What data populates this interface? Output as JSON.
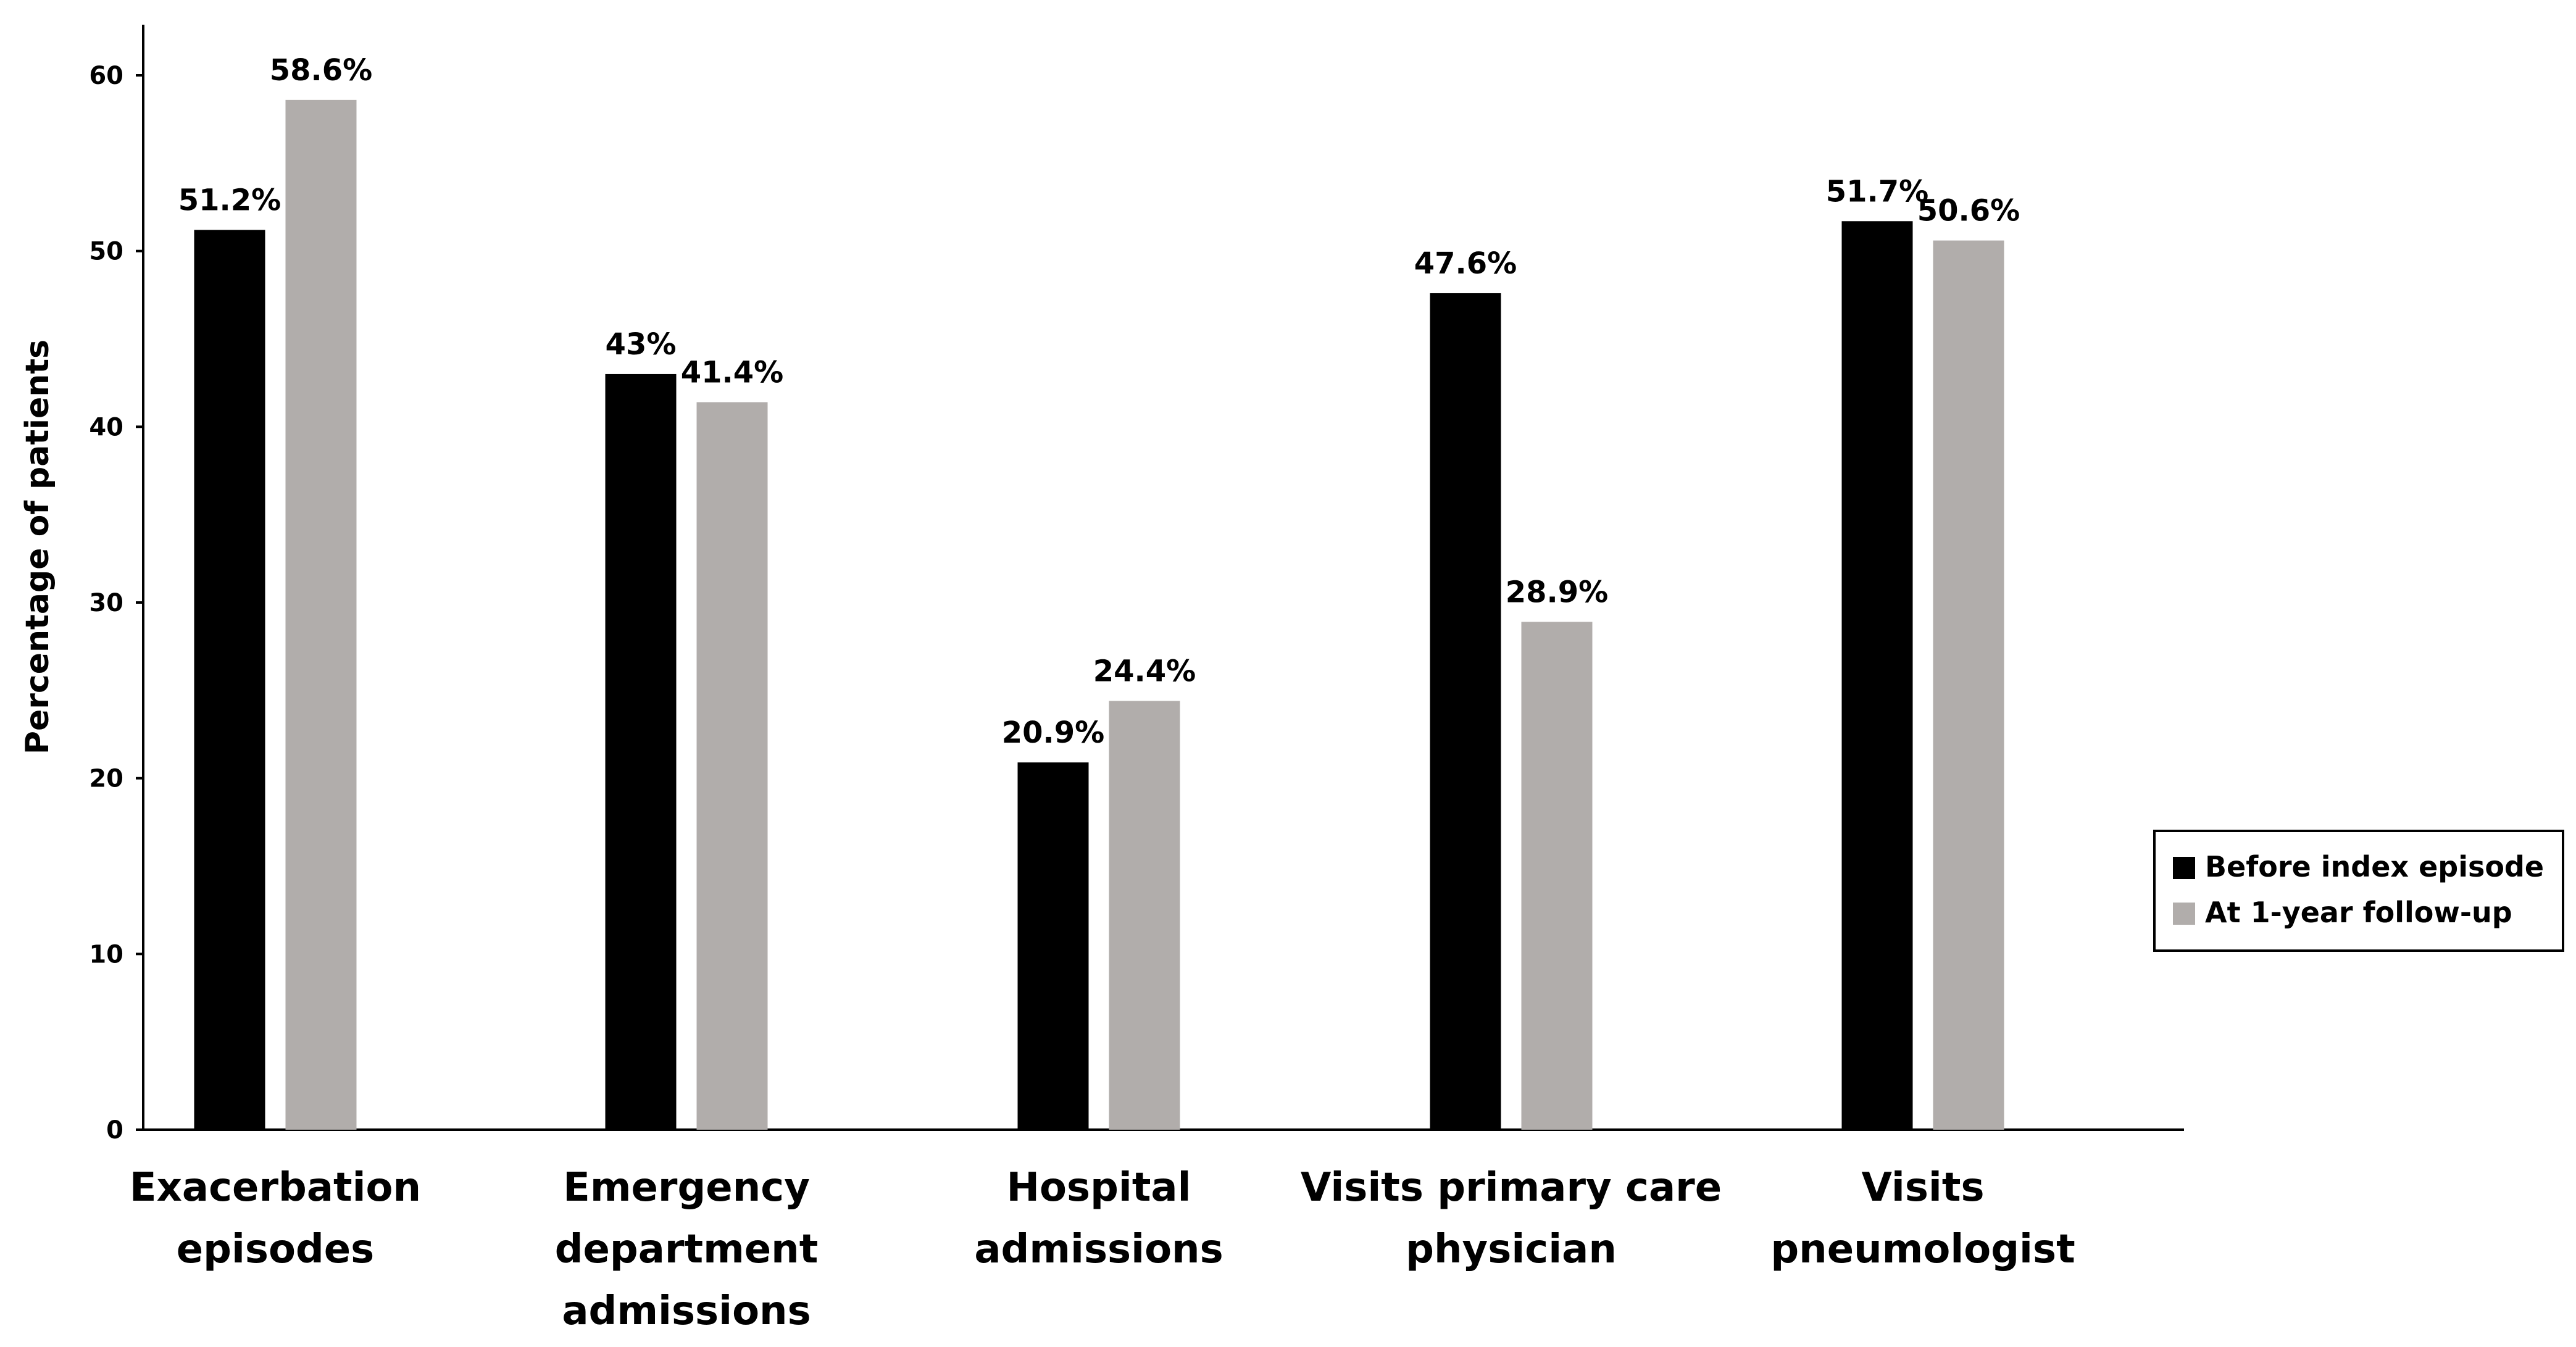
{
  "chart_data": {
    "type": "bar",
    "title": "",
    "xlabel": "",
    "ylabel": "Percentage of patients",
    "ylim": [
      0,
      60
    ],
    "yticks": [
      0,
      10,
      20,
      30,
      40,
      50,
      60
    ],
    "grid": false,
    "legend_position": "right",
    "categories": [
      [
        "Exacerbation",
        "episodes"
      ],
      [
        "Emergency",
        "department",
        "admissions"
      ],
      [
        "Hospital",
        "admissions"
      ],
      [
        "Visits primary care",
        "physician"
      ],
      [
        "Visits",
        "pneumologist"
      ]
    ],
    "series": [
      {
        "name": "Before index episode",
        "color": "#000000",
        "values": [
          51.2,
          43,
          20.9,
          47.6,
          51.7
        ],
        "labels": [
          "51.2%",
          "43%",
          "20.9%",
          "47.6%",
          "51.7%"
        ]
      },
      {
        "name": "At 1-year follow-up",
        "color": "#b1adab",
        "values": [
          58.6,
          41.4,
          24.4,
          28.9,
          50.6
        ],
        "labels": [
          "58.6%",
          "41.4%",
          "24.4%",
          "28.9%",
          "50.6%"
        ]
      }
    ]
  }
}
